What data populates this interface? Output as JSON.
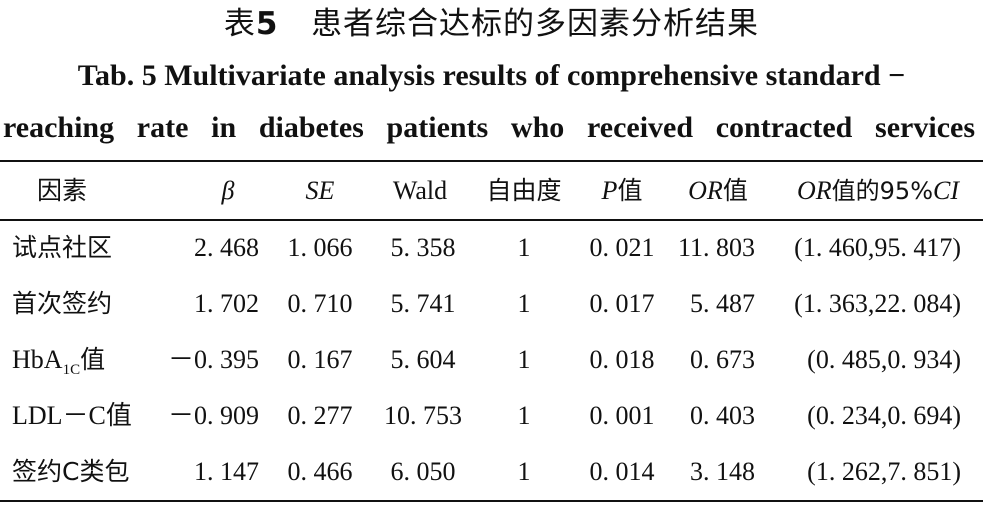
{
  "title": {
    "cn_prefix": "表",
    "cn_num": "5",
    "cn_text": "患者综合达标的多因素分析结果",
    "en_line1": "Tab. 5   Multivariate analysis results of comprehensive standard −",
    "en_line2": "reaching rate in diabetes patients who received contracted services"
  },
  "table": {
    "headers": {
      "factor": "因素",
      "beta": "β",
      "se": "SE",
      "wald": "Wald",
      "df": "自由度",
      "p_italic": "P",
      "p_suffix": "值",
      "or_italic": "OR",
      "or_suffix": "值",
      "ci_italic1": "OR",
      "ci_mid": "值的95%",
      "ci_italic2": "CI"
    },
    "rows": [
      {
        "factor": "试点社区",
        "beta": "2. 468",
        "se": "1. 066",
        "wald": "5. 358",
        "df": "1",
        "p": "0. 021",
        "or": "11. 803",
        "ci": "(1. 460,95. 417)"
      },
      {
        "factor": "首次签约",
        "beta": "1. 702",
        "se": "0. 710",
        "wald": "5. 741",
        "df": "1",
        "p": "0. 017",
        "or": "5. 487",
        "ci": "(1. 363,22. 084)"
      },
      {
        "factor_main": "HbA",
        "factor_sub": "1C",
        "factor_tail": "值",
        "beta": "－0. 395",
        "se": "0. 167",
        "wald": "5. 604",
        "df": "1",
        "p": "0. 018",
        "or": "0. 673",
        "ci": "(0. 485,0. 934)"
      },
      {
        "factor": "LDL－C值",
        "beta": "－0. 909",
        "se": "0. 277",
        "wald": "10. 753",
        "df": "1",
        "p": "0. 001",
        "or": "0. 403",
        "ci": "(0. 234,0. 694)"
      },
      {
        "factor": "签约C类包",
        "beta": "1. 147",
        "se": "0. 466",
        "wald": "6. 050",
        "df": "1",
        "p": "0. 014",
        "or": "3. 148",
        "ci": "(1. 262,7. 851)"
      }
    ]
  }
}
